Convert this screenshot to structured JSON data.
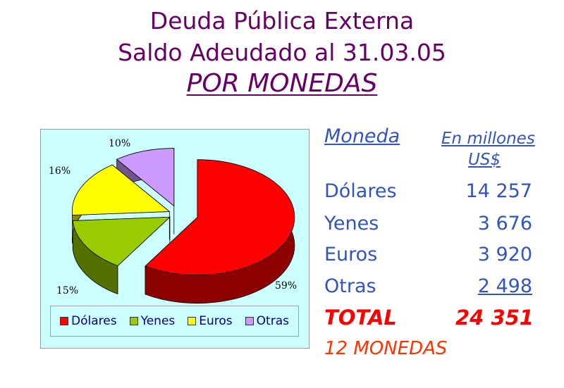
{
  "header": {
    "line1": "Deuda Pública Externa",
    "line2": "Saldo Adeudado al 31.03.05",
    "line3": "POR MONEDAS"
  },
  "table": {
    "col1_header": "Moneda",
    "col2_header_line1": "En millones",
    "col2_header_line2": "US$",
    "rows": [
      {
        "name": "Dólares",
        "value": "14 257"
      },
      {
        "name": "Yenes",
        "value": "3 676"
      },
      {
        "name": "Euros",
        "value": "3 920"
      },
      {
        "name": "Otras",
        "value": "2 498"
      }
    ],
    "total_label": "TOTAL",
    "total_value": "24 351",
    "count_label": "12 MONEDAS"
  },
  "chart_data": {
    "type": "pie",
    "slices": [
      {
        "name": "Dólares",
        "value": 59,
        "label": "59%",
        "color": "#ff0000"
      },
      {
        "name": "Yenes",
        "value": 15,
        "label": "15%",
        "color": "#99cc00"
      },
      {
        "name": "Euros",
        "value": 16,
        "label": "16%",
        "color": "#ffff00"
      },
      {
        "name": "Otras",
        "value": 10,
        "label": "10%",
        "color": "#cc99ff"
      }
    ],
    "legend_position": "bottom",
    "exploded": true,
    "three_d": true
  },
  "colors": {
    "title": "#660066",
    "table_text": "#3355bb",
    "total": "#ff0000",
    "chart_background": "#ccffff"
  }
}
